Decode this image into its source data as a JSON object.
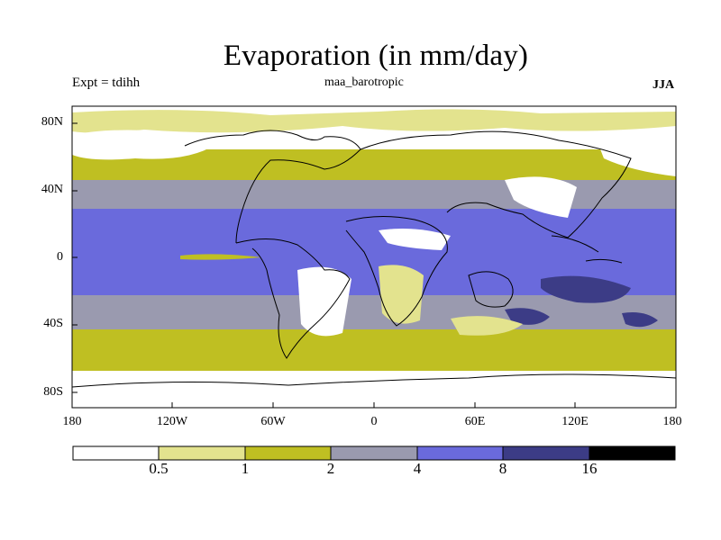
{
  "title": "Evaporation (in mm/day)",
  "experiment_label": "Expt = tdihh",
  "run_name": "maa_barotropic",
  "season": "JJA",
  "lat_ticks": [
    "80N",
    "40N",
    "0",
    "40S",
    "80S"
  ],
  "lon_ticks": [
    "180",
    "120W",
    "60W",
    "0",
    "60E",
    "120E",
    "180"
  ],
  "colorbar": {
    "colors": [
      "#ffffff",
      "#e3e38e",
      "#bfbf22",
      "#9a9aaf",
      "#6a6adc",
      "#3c3c86",
      "#000000"
    ],
    "labels": [
      "0.5",
      "1",
      "2",
      "4",
      "8",
      "16"
    ]
  }
}
